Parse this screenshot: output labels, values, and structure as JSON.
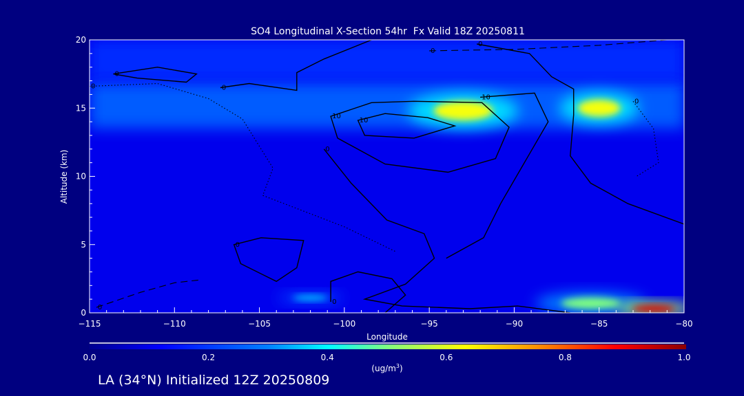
{
  "chart_data": {
    "type": "heatmap",
    "title": "SO4 Longitudinal X-Section 54hr  Fx Valid 18Z 20250811",
    "xlabel": "Longitude",
    "ylabel": "Altitude (km)",
    "xlim": [
      -115,
      -80
    ],
    "ylim": [
      0,
      20
    ],
    "xticks": [
      -115,
      -110,
      -105,
      -100,
      -95,
      -90,
      -85,
      -80
    ],
    "xtick_labels": [
      "−115",
      "−110",
      "−105",
      "−100",
      "−95",
      "−90",
      "−85",
      "−80"
    ],
    "yticks": [
      0,
      5,
      10,
      15,
      20
    ],
    "ytick_labels": [
      "0",
      "5",
      "10",
      "15",
      "20"
    ],
    "colorbar": {
      "range": [
        0.0,
        1.0
      ],
      "tick_labels": [
        "0.0",
        "0.2",
        "0.4",
        "0.6",
        "0.8",
        "1.0"
      ],
      "ticks": [
        0,
        0.2,
        0.4,
        0.6,
        0.8,
        1.0
      ],
      "units_label": "(ug/m",
      "units_sup": "3",
      "units_close": ")"
    },
    "background_value": 0.1,
    "field_features": [
      {
        "lon": [
          -115,
          -80
        ],
        "alt": [
          0,
          13
        ],
        "value": 0.1
      },
      {
        "lon": [
          -115,
          -80
        ],
        "alt": [
          13.5,
          17
        ],
        "value": 0.25
      },
      {
        "lon": [
          -115,
          -80
        ],
        "alt": [
          17,
          20
        ],
        "value": 0.18
      },
      {
        "lon": -93,
        "alt": 14.8,
        "value": 0.62,
        "spread": [
          2.5,
          1.0
        ]
      },
      {
        "lon": -85,
        "alt": 15.0,
        "value": 0.62,
        "spread": [
          1.8,
          0.9
        ]
      },
      {
        "lon": -85.5,
        "alt": 0.7,
        "value": 0.5,
        "spread": [
          2.5,
          0.6
        ]
      },
      {
        "lon": -102,
        "alt": 1.1,
        "value": 0.35,
        "spread": [
          1.5,
          0.3
        ]
      },
      {
        "lon": -81.8,
        "alt": 0.3,
        "value": 0.92,
        "spread": [
          1.8,
          0.35
        ]
      }
    ],
    "contours": [
      {
        "level": "10",
        "style": "solid",
        "closed": true,
        "points": [
          [
            -99.2,
            14.1
          ],
          [
            -97.6,
            14.6
          ],
          [
            -95.1,
            14.3
          ],
          [
            -93.5,
            13.7
          ],
          [
            -95.9,
            12.8
          ],
          [
            -98.8,
            13.0
          ]
        ]
      },
      {
        "level": "10",
        "style": "solid",
        "closed": true,
        "points": [
          [
            -100.8,
            14.4
          ],
          [
            -98.4,
            15.4
          ],
          [
            -95.9,
            15.5
          ],
          [
            -91.9,
            15.4
          ],
          [
            -90.3,
            13.6
          ],
          [
            -91.1,
            11.3
          ],
          [
            -93.9,
            10.3
          ],
          [
            -97.6,
            10.9
          ],
          [
            -100.4,
            12.8
          ]
        ]
      },
      {
        "level": "0",
        "style": "solid",
        "closed": true,
        "points": [
          [
            -113.6,
            17.5
          ],
          [
            -111.0,
            18.0
          ],
          [
            -108.7,
            17.5
          ],
          [
            -109.3,
            16.9
          ],
          [
            -112.2,
            17.2
          ]
        ]
      },
      {
        "level": "0",
        "style": "solid",
        "closed": true,
        "points": [
          [
            -106.5,
            5.0
          ],
          [
            -104.9,
            5.5
          ],
          [
            -102.4,
            5.3
          ],
          [
            -102.8,
            3.3
          ],
          [
            -104.0,
            2.3
          ],
          [
            -106.1,
            3.6
          ]
        ]
      },
      {
        "level": "0",
        "style": "solid",
        "closed": false,
        "points": [
          [
            -100.8,
            0.8
          ],
          [
            -100.8,
            2.3
          ],
          [
            -99.2,
            3.0
          ],
          [
            -97.2,
            2.5
          ],
          [
            -96.4,
            1.3
          ],
          [
            -97.6,
            0
          ]
        ]
      },
      {
        "level": "0",
        "style": "solid",
        "closed": false,
        "points": [
          [
            -107.3,
            16.5
          ],
          [
            -105.6,
            16.8
          ],
          [
            -102.8,
            16.3
          ],
          [
            -102.8,
            17.6
          ],
          [
            -101.2,
            18.6
          ],
          [
            -98.4,
            20
          ]
        ]
      },
      {
        "level": "0",
        "style": "solid",
        "closed": false,
        "points": [
          [
            -101.2,
            12.0
          ],
          [
            -99.6,
            9.5
          ],
          [
            -97.5,
            6.8
          ],
          [
            -95.3,
            5.8
          ],
          [
            -94.7,
            4.0
          ],
          [
            -96.4,
            2.1
          ],
          [
            -98.8,
            1.0
          ],
          [
            -96.6,
            0.5
          ],
          [
            -92.6,
            0.3
          ],
          [
            -89.8,
            0.5
          ],
          [
            -86.7,
            0
          ]
        ]
      },
      {
        "level": "0",
        "style": "solid",
        "closed": false,
        "points": [
          [
            -92.2,
            19.7
          ],
          [
            -89.1,
            19.0
          ],
          [
            -87.8,
            17.3
          ],
          [
            -86.5,
            16.4
          ],
          [
            -86.5,
            14.5
          ],
          [
            -86.7,
            11.5
          ],
          [
            -85.5,
            9.5
          ],
          [
            -83.3,
            8.0
          ],
          [
            -80,
            6.5
          ]
        ]
      },
      {
        "level": "10",
        "style": "solid",
        "closed": false,
        "points": [
          [
            -92.0,
            15.8
          ],
          [
            -88.8,
            16.1
          ],
          [
            -88.0,
            14.0
          ],
          [
            -89.4,
            11.0
          ],
          [
            -90.8,
            8.0
          ],
          [
            -91.8,
            5.5
          ],
          [
            -94.0,
            4.0
          ]
        ]
      },
      {
        "level": "0",
        "style": "dashed",
        "closed": false,
        "points": [
          [
            -95.0,
            19.2
          ],
          [
            -90.0,
            19.3
          ],
          [
            -85.0,
            19.6
          ],
          [
            -81.0,
            20
          ]
        ]
      },
      {
        "level": "0",
        "style": "dashed",
        "closed": false,
        "points": [
          [
            -114.6,
            0.4
          ],
          [
            -112,
            1.5
          ],
          [
            -110,
            2.2
          ],
          [
            -108.6,
            2.4
          ]
        ]
      },
      {
        "level": "0",
        "style": "dotted",
        "closed": false,
        "points": [
          [
            -115,
            16.6
          ],
          [
            -111,
            16.8
          ],
          [
            -108,
            15.7
          ],
          [
            -106,
            14.2
          ],
          [
            -105.2,
            12.6
          ],
          [
            -104.2,
            10.6
          ],
          [
            -104.8,
            8.6
          ],
          [
            -102.5,
            7.5
          ],
          [
            -100,
            6.3
          ],
          [
            -97,
            4.5
          ]
        ]
      },
      {
        "level": "0",
        "style": "dotted",
        "closed": false,
        "points": [
          [
            -83,
            15.5
          ],
          [
            -81.8,
            13.5
          ],
          [
            -81.5,
            11.0
          ],
          [
            -82.8,
            10.0
          ]
        ]
      }
    ]
  },
  "footer": "LA (34°N) Initialized 12Z 20250809"
}
